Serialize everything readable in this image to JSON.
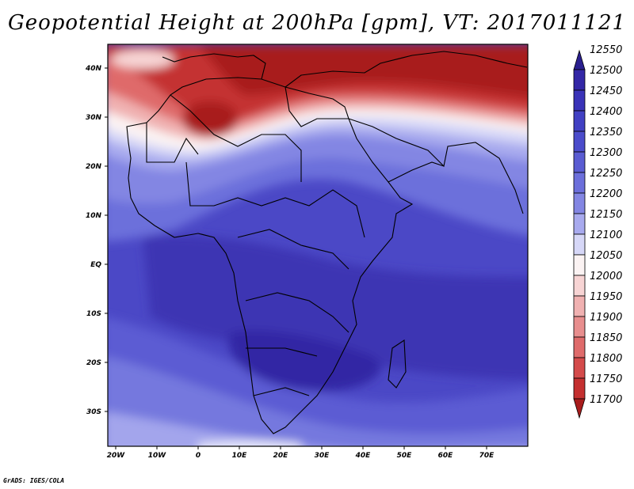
{
  "title": "Geopotential Height at 200hPa [gpm], VT: 2017011121",
  "footer": "GrADS: IGES/COLA",
  "map": {
    "lon_labels": [
      "20W",
      "10W",
      "0",
      "10E",
      "20E",
      "30E",
      "40E",
      "50E",
      "60E",
      "70E"
    ],
    "lat_labels": [
      "40N",
      "30N",
      "20N",
      "10N",
      "EQ",
      "10S",
      "20S",
      "30S"
    ],
    "region": "Africa and surrounding regions",
    "colorbar": {
      "levels": [
        12550,
        12500,
        12450,
        12400,
        12350,
        12300,
        12250,
        12200,
        12150,
        12100,
        12050,
        12000,
        11950,
        11900,
        11850,
        11800,
        11750,
        11700
      ],
      "labels": [
        "12550",
        "12500",
        "12450",
        "12400",
        "12350",
        "12300",
        "12250",
        "12200",
        "12150",
        "12100",
        "12050",
        "12000",
        "11950",
        "11900",
        "11850",
        "11800",
        "11750",
        "11700"
      ],
      "colors": [
        "#2a1f8f",
        "#3327a6",
        "#3a33b8",
        "#4140c3",
        "#4b4ccb",
        "#5a5cd2",
        "#6c6fdb",
        "#8386e3",
        "#a8aaee",
        "#d6d7f7",
        "#fbf3f3",
        "#f7d4d4",
        "#f0b1b1",
        "#e88e8e",
        "#df6b6b",
        "#d44b4b",
        "#c43030",
        "#a81c1c"
      ]
    }
  }
}
